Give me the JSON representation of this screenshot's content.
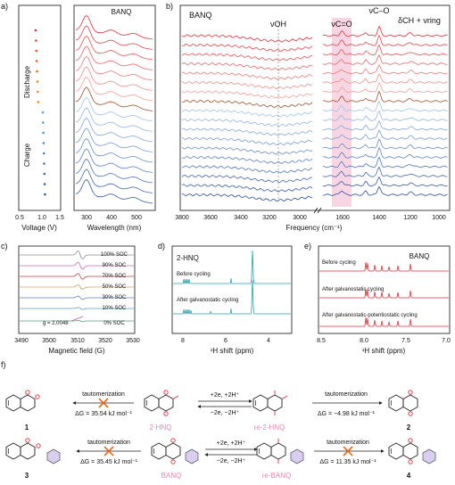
{
  "panel_labels": {
    "a": "a)",
    "b": "b)",
    "c": "c)",
    "d": "d)",
    "e": "e)",
    "f": "f)"
  },
  "panel_a": {
    "discharge_label": "Discharge",
    "charge_label": "Charge",
    "voltage_axis_label": "Voltage (V)",
    "voltage_ticks": [
      "0.5",
      "1.0",
      "1.5"
    ],
    "uvvis_title": "BANQ",
    "wavelength_axis_label": "Wavelength (nm)",
    "wavelength_ticks": [
      "300",
      "400",
      "500"
    ]
  },
  "panel_b": {
    "title": "BANQ",
    "peak_oh": "νOH",
    "peak_co": "νC=O",
    "peak_c_o": "νC–O",
    "peak_ch_ring": "δCH + νring",
    "x_axis_label": "Frequency (cm⁻¹)",
    "x_ticks_left": [
      "3800",
      "3600",
      "3400",
      "3200",
      "3000"
    ],
    "x_ticks_right": [
      "1600",
      "1400",
      "1200",
      "1000"
    ]
  },
  "panel_c": {
    "x_axis_label": "Magnetic field (G)",
    "x_ticks": [
      "3490",
      "3500",
      "3510",
      "3520",
      "3530"
    ],
    "g_value": "g = 2.0048",
    "soc_labels": [
      "100% SOC",
      "90% SOC",
      "70% SOC",
      "50% SOC",
      "30% SOC",
      "10% SOC",
      "0% SOC"
    ]
  },
  "panel_d": {
    "title": "2-HNQ",
    "label_top": "Before cycling",
    "label_bottom": "After galvanostatic cycling",
    "x_axis_label": "¹H shift (ppm)",
    "x_ticks": [
      "8",
      "6",
      "4"
    ]
  },
  "panel_e": {
    "title": "BANQ",
    "label_1": "Before cycling",
    "label_2": "After galvanostatic cycling",
    "label_3": "After galvanostatic-potentiostatic cycling",
    "x_axis_label": "¹H shift (ppm)",
    "x_ticks": [
      "8.5",
      "8.0",
      "7.5",
      "7.0"
    ]
  },
  "panel_f": {
    "tautomerization": "tautomerization",
    "dg_1": "ΔG = 35.54 kJ mol⁻¹",
    "dg_2": "ΔG = −4.98 kJ mol⁻¹",
    "dg_3": "ΔG = 35.45 kJ mol⁻¹",
    "dg_4": "ΔG = 11.35 kJ mol⁻¹",
    "red_fwd": "+2e, +2H⁺",
    "red_back": "−2e, −2H⁺",
    "num_1": "1",
    "num_2": "2",
    "num_3": "3",
    "num_4": "4",
    "name_2hnq": "2-HNQ",
    "name_re2hnq": "re-2-HNQ",
    "name_banq": "BANQ",
    "name_rebanq": "re-BANQ"
  },
  "colors": {
    "red": "#e0303a",
    "blue": "#3a62b8",
    "teal": "#2a9fb0",
    "pink": "#e986b0",
    "orange": "#f08a24",
    "cross": "#e86a1a"
  }
}
